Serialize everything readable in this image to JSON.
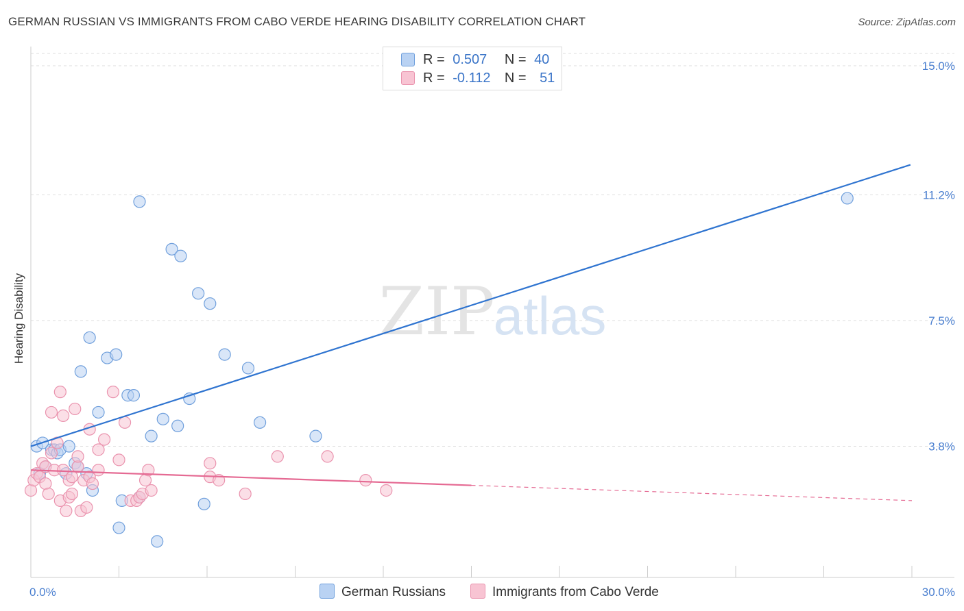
{
  "title": "GERMAN RUSSIAN VS IMMIGRANTS FROM CABO VERDE HEARING DISABILITY CORRELATION CHART",
  "source": "Source: ZipAtlas.com",
  "watermark": {
    "zip": "ZIP",
    "atlas": "atlas"
  },
  "legend": {
    "r_label": "R =",
    "n_label": "N =",
    "rows": [
      {
        "r": "0.507",
        "n": "40"
      },
      {
        "r": "-0.112",
        "n": "51"
      }
    ]
  },
  "colors": {
    "blue_fill": "#b9d2f3",
    "blue_stroke": "#6f9fdc",
    "blue_line": "#2f74d0",
    "pink_fill": "#f8c4d3",
    "pink_stroke": "#ea93ae",
    "pink_line": "#e56a93",
    "grid": "#dddddd",
    "tick_text": "#4a7fd0"
  },
  "chart_data": {
    "type": "scatter",
    "title": "GERMAN RUSSIAN VS IMMIGRANTS FROM CABO VERDE HEARING DISABILITY CORRELATION CHART",
    "xlabel": "",
    "ylabel": "Hearing Disability",
    "xlim": [
      0,
      30
    ],
    "ylim": [
      0,
      15.5
    ],
    "x_tick_labels": [
      {
        "value": 0,
        "label": "0.0%"
      },
      {
        "value": 30,
        "label": "30.0%"
      }
    ],
    "y_tick_labels": [
      {
        "value": 3.8,
        "label": "3.8%"
      },
      {
        "value": 7.5,
        "label": "7.5%"
      },
      {
        "value": 11.2,
        "label": "11.2%"
      },
      {
        "value": 15.0,
        "label": "15.0%"
      }
    ],
    "series": [
      {
        "name": "German Russians",
        "color": "blue",
        "trend": {
          "x": [
            0,
            30
          ],
          "y": [
            3.8,
            12.1
          ],
          "dashed_from": null
        },
        "points": [
          [
            0.2,
            3.8
          ],
          [
            0.4,
            3.9
          ],
          [
            0.5,
            3.2
          ],
          [
            0.7,
            3.7
          ],
          [
            0.8,
            3.7
          ],
          [
            0.9,
            3.6
          ],
          [
            1.0,
            3.7
          ],
          [
            1.2,
            3.0
          ],
          [
            1.3,
            3.8
          ],
          [
            1.5,
            3.3
          ],
          [
            1.6,
            3.2
          ],
          [
            1.7,
            6.0
          ],
          [
            1.9,
            3.0
          ],
          [
            2.0,
            7.0
          ],
          [
            2.1,
            2.5
          ],
          [
            2.3,
            4.8
          ],
          [
            2.6,
            6.4
          ],
          [
            2.9,
            6.5
          ],
          [
            3.0,
            1.4
          ],
          [
            3.1,
            2.2
          ],
          [
            3.3,
            5.3
          ],
          [
            3.5,
            5.3
          ],
          [
            3.7,
            2.3
          ],
          [
            3.7,
            11.0
          ],
          [
            4.1,
            4.1
          ],
          [
            4.3,
            1.0
          ],
          [
            4.5,
            4.6
          ],
          [
            4.8,
            9.6
          ],
          [
            5.0,
            4.4
          ],
          [
            5.1,
            9.4
          ],
          [
            5.4,
            5.2
          ],
          [
            5.7,
            8.3
          ],
          [
            5.9,
            2.1
          ],
          [
            6.1,
            8.0
          ],
          [
            6.6,
            6.5
          ],
          [
            7.4,
            6.1
          ],
          [
            7.8,
            4.5
          ],
          [
            9.7,
            4.1
          ],
          [
            27.8,
            11.1
          ],
          [
            0.3,
            3.0
          ]
        ]
      },
      {
        "name": "Immigrants from Cabo Verde",
        "color": "pink",
        "trend": {
          "x": [
            0,
            30
          ],
          "y": [
            3.1,
            2.2
          ],
          "dashed_from": 15.0
        },
        "points": [
          [
            0.0,
            2.5
          ],
          [
            0.1,
            2.8
          ],
          [
            0.2,
            3.0
          ],
          [
            0.3,
            2.9
          ],
          [
            0.4,
            3.3
          ],
          [
            0.5,
            2.7
          ],
          [
            0.5,
            3.2
          ],
          [
            0.6,
            2.4
          ],
          [
            0.7,
            3.6
          ],
          [
            0.7,
            4.8
          ],
          [
            0.8,
            3.1
          ],
          [
            0.9,
            3.9
          ],
          [
            1.0,
            2.2
          ],
          [
            1.0,
            5.4
          ],
          [
            1.1,
            4.7
          ],
          [
            1.1,
            3.1
          ],
          [
            1.2,
            1.9
          ],
          [
            1.3,
            2.3
          ],
          [
            1.3,
            2.8
          ],
          [
            1.4,
            2.9
          ],
          [
            1.4,
            2.4
          ],
          [
            1.5,
            4.9
          ],
          [
            1.6,
            3.2
          ],
          [
            1.6,
            3.5
          ],
          [
            1.7,
            1.9
          ],
          [
            1.8,
            2.8
          ],
          [
            1.9,
            2.0
          ],
          [
            2.0,
            4.3
          ],
          [
            2.0,
            2.9
          ],
          [
            2.1,
            2.7
          ],
          [
            2.3,
            3.1
          ],
          [
            2.3,
            3.7
          ],
          [
            2.5,
            4.0
          ],
          [
            2.8,
            5.4
          ],
          [
            3.0,
            3.4
          ],
          [
            3.2,
            4.5
          ],
          [
            3.4,
            2.2
          ],
          [
            3.6,
            2.2
          ],
          [
            3.7,
            2.3
          ],
          [
            3.8,
            2.4
          ],
          [
            3.9,
            2.8
          ],
          [
            4.0,
            3.1
          ],
          [
            4.1,
            2.5
          ],
          [
            6.1,
            3.3
          ],
          [
            6.1,
            2.9
          ],
          [
            6.4,
            2.8
          ],
          [
            7.3,
            2.4
          ],
          [
            8.4,
            3.5
          ],
          [
            10.1,
            3.5
          ],
          [
            11.4,
            2.8
          ],
          [
            12.1,
            2.5
          ]
        ]
      }
    ]
  }
}
